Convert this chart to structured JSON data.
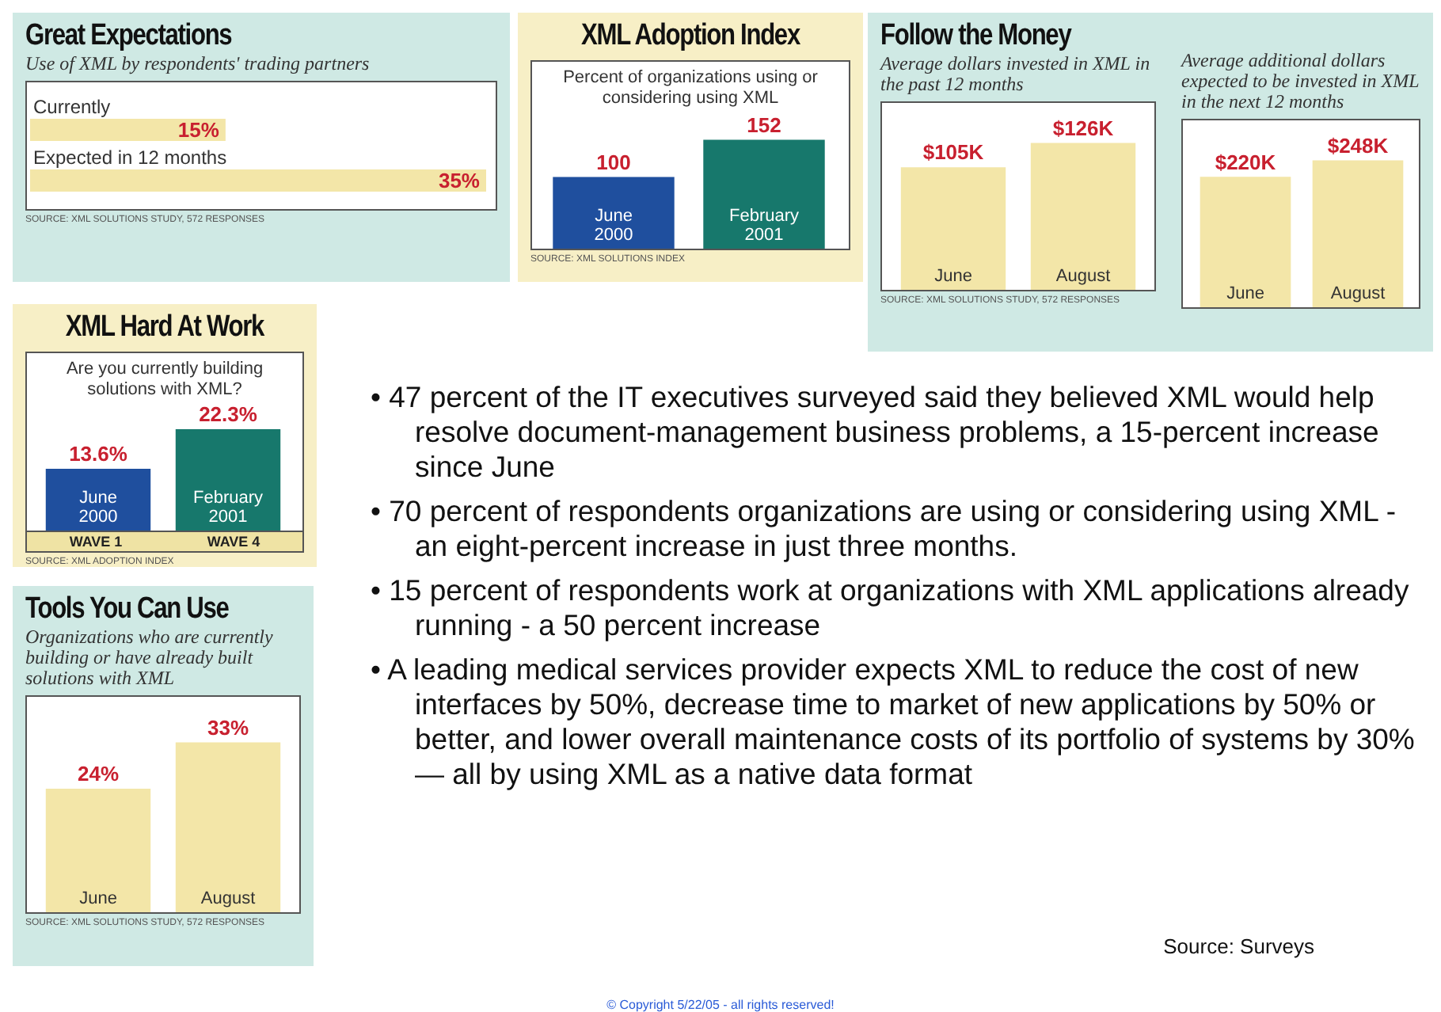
{
  "chart_data": [
    {
      "type": "bar",
      "orientation": "horizontal",
      "title": "Great Expectations",
      "subtitle": "Use of XML by respondents' trading partners",
      "categories": [
        "Currently",
        "Expected in 12 months"
      ],
      "values": [
        15,
        35
      ],
      "value_labels": [
        "15%",
        "35%"
      ],
      "color": "#f3e6a8",
      "annotations": [
        "SOURCE: XML SOLUTIONS STUDY, 572 RESPONSES"
      ]
    },
    {
      "type": "bar",
      "title": "XML Adoption Index",
      "subtitle": "Percent of organizations using or considering using XML",
      "categories": [
        "June 2000",
        "February 2001"
      ],
      "values": [
        100,
        152
      ],
      "data_labels": true,
      "colors": [
        "#1f4f9e",
        "#17786c"
      ],
      "annotations": [
        "SOURCE: XML SOLUTIONS INDEX"
      ]
    },
    {
      "type": "bar",
      "title": "Follow the Money",
      "subtitle": "Average dollars invested in XML in the past 12 months",
      "categories": [
        "June",
        "August"
      ],
      "values": [
        105,
        126
      ],
      "value_labels": [
        "$105K",
        "$126K"
      ],
      "color": "#f3e6a8",
      "annotations": [
        "SOURCE: XML SOLUTIONS STUDY, 572 RESPONSES"
      ]
    },
    {
      "type": "bar",
      "subtitle": "Average additional dollars expected to be invested in XML in the next 12 months",
      "categories": [
        "June",
        "August"
      ],
      "values": [
        220,
        248
      ],
      "value_labels": [
        "$220K",
        "$248K"
      ],
      "color": "#f3e6a8"
    },
    {
      "type": "bar",
      "title": "XML Hard At Work",
      "subtitle": "Are you currently building solutions with XML?",
      "categories": [
        "June 2000",
        "February 2001"
      ],
      "values": [
        13.6,
        22.3
      ],
      "value_labels": [
        "13.6%",
        "22.3%"
      ],
      "colors": [
        "#1f4f9e",
        "#17786c"
      ],
      "annotations": [
        "WAVE 1",
        "WAVE 4",
        "SOURCE: XML ADOPTION INDEX"
      ]
    },
    {
      "type": "bar",
      "title": "Tools You Can Use",
      "subtitle": "Organizations who are currently building or have already built solutions with XML",
      "categories": [
        "June",
        "August"
      ],
      "values": [
        24,
        33
      ],
      "value_labels": [
        "24%",
        "33%"
      ],
      "color": "#f3e6a8",
      "annotations": [
        "SOURCE: XML SOLUTIONS STUDY, 572 RESPONSES"
      ]
    },
    {
      "type": "other",
      "annotations": [
        "• 47 percent of the IT executives surveyed said they believed XML would help resolve document-management business problems, a 15-percent increase since June",
        "• 70 percent of respondents organizations are using or considering using XML - an eight-percent increase in just three months.",
        "• 15 percent of respondents work at organizations with XML applications already running - a 50 percent increase",
        "• A leading medical services provider expects XML to reduce the cost of new interfaces by 50%, decrease time to market of new applications by 50% or better, and lower overall maintenance costs of its portfolio of systems by 30% — all by using XML as a native data format"
      ]
    },
    {
      "type": "other",
      "annotations": [
        "Source:  Surveys",
        "© Copyright 5/22/05 - all rights reserved!"
      ]
    }
  ]
}
